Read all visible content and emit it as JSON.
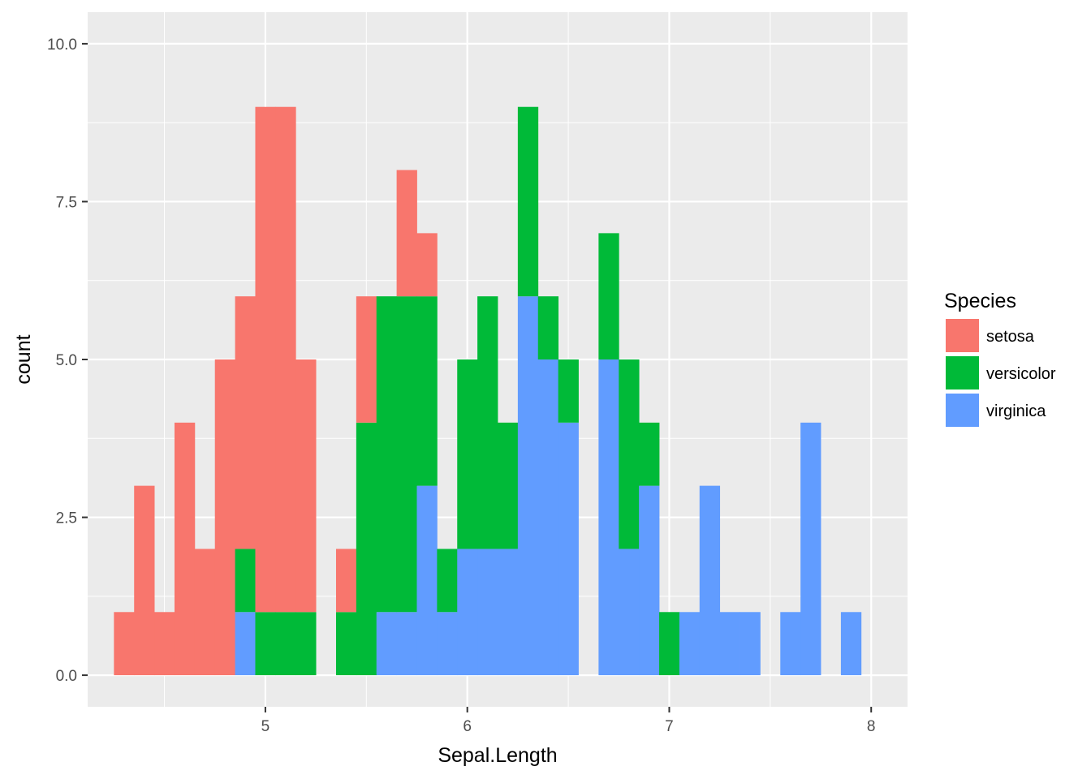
{
  "chart_data": {
    "type": "bar",
    "stacked": true,
    "bin_width": 0.1,
    "bin_starts": [
      4.25,
      4.35,
      4.45,
      4.55,
      4.65,
      4.75,
      4.85,
      4.95,
      5.05,
      5.15,
      5.25,
      5.35,
      5.45,
      5.55,
      5.65,
      5.75,
      5.85,
      5.95,
      6.05,
      6.15,
      6.25,
      6.35,
      6.45,
      6.55,
      6.65,
      6.75,
      6.85,
      6.95,
      7.05,
      7.15,
      7.25,
      7.35,
      7.45,
      7.55,
      7.65,
      7.75,
      7.85
    ],
    "series": [
      {
        "name": "setosa",
        "color": "#F8766D",
        "values": [
          1,
          3,
          1,
          4,
          2,
          5,
          4,
          8,
          8,
          4,
          0,
          1,
          2,
          0,
          2,
          1,
          0,
          0,
          0,
          0,
          0,
          0,
          0,
          0,
          0,
          0,
          0,
          0,
          0,
          0,
          0,
          0,
          0,
          0,
          0,
          0,
          0
        ]
      },
      {
        "name": "versicolor",
        "color": "#00BA38",
        "values": [
          0,
          0,
          0,
          0,
          0,
          0,
          1,
          1,
          1,
          1,
          0,
          1,
          4,
          5,
          5,
          3,
          1,
          3,
          4,
          2,
          3,
          1,
          1,
          0,
          2,
          3,
          1,
          1,
          0,
          0,
          0,
          0,
          0,
          0,
          0,
          0,
          0
        ]
      },
      {
        "name": "virginica",
        "color": "#619CFF",
        "values": [
          0,
          0,
          0,
          0,
          0,
          0,
          1,
          0,
          0,
          0,
          0,
          0,
          0,
          1,
          1,
          3,
          1,
          2,
          2,
          2,
          6,
          5,
          4,
          0,
          5,
          2,
          3,
          0,
          1,
          3,
          1,
          1,
          0,
          1,
          4,
          0,
          1
        ]
      }
    ],
    "xlabel": "Sepal.Length",
    "ylabel": "count",
    "xlim": [
      4.12,
      8.18
    ],
    "ylim": [
      -0.5,
      10.5
    ],
    "x_ticks": [
      5,
      6,
      7,
      8
    ],
    "x_tick_labels": [
      "5",
      "6",
      "7",
      "8"
    ],
    "y_ticks": [
      0,
      2.5,
      5,
      7.5,
      10
    ],
    "y_tick_labels": [
      "0.0",
      "2.5",
      "5.0",
      "7.5",
      "10.0"
    ],
    "grid": true,
    "legend": {
      "title": "Species",
      "position": "right"
    }
  }
}
